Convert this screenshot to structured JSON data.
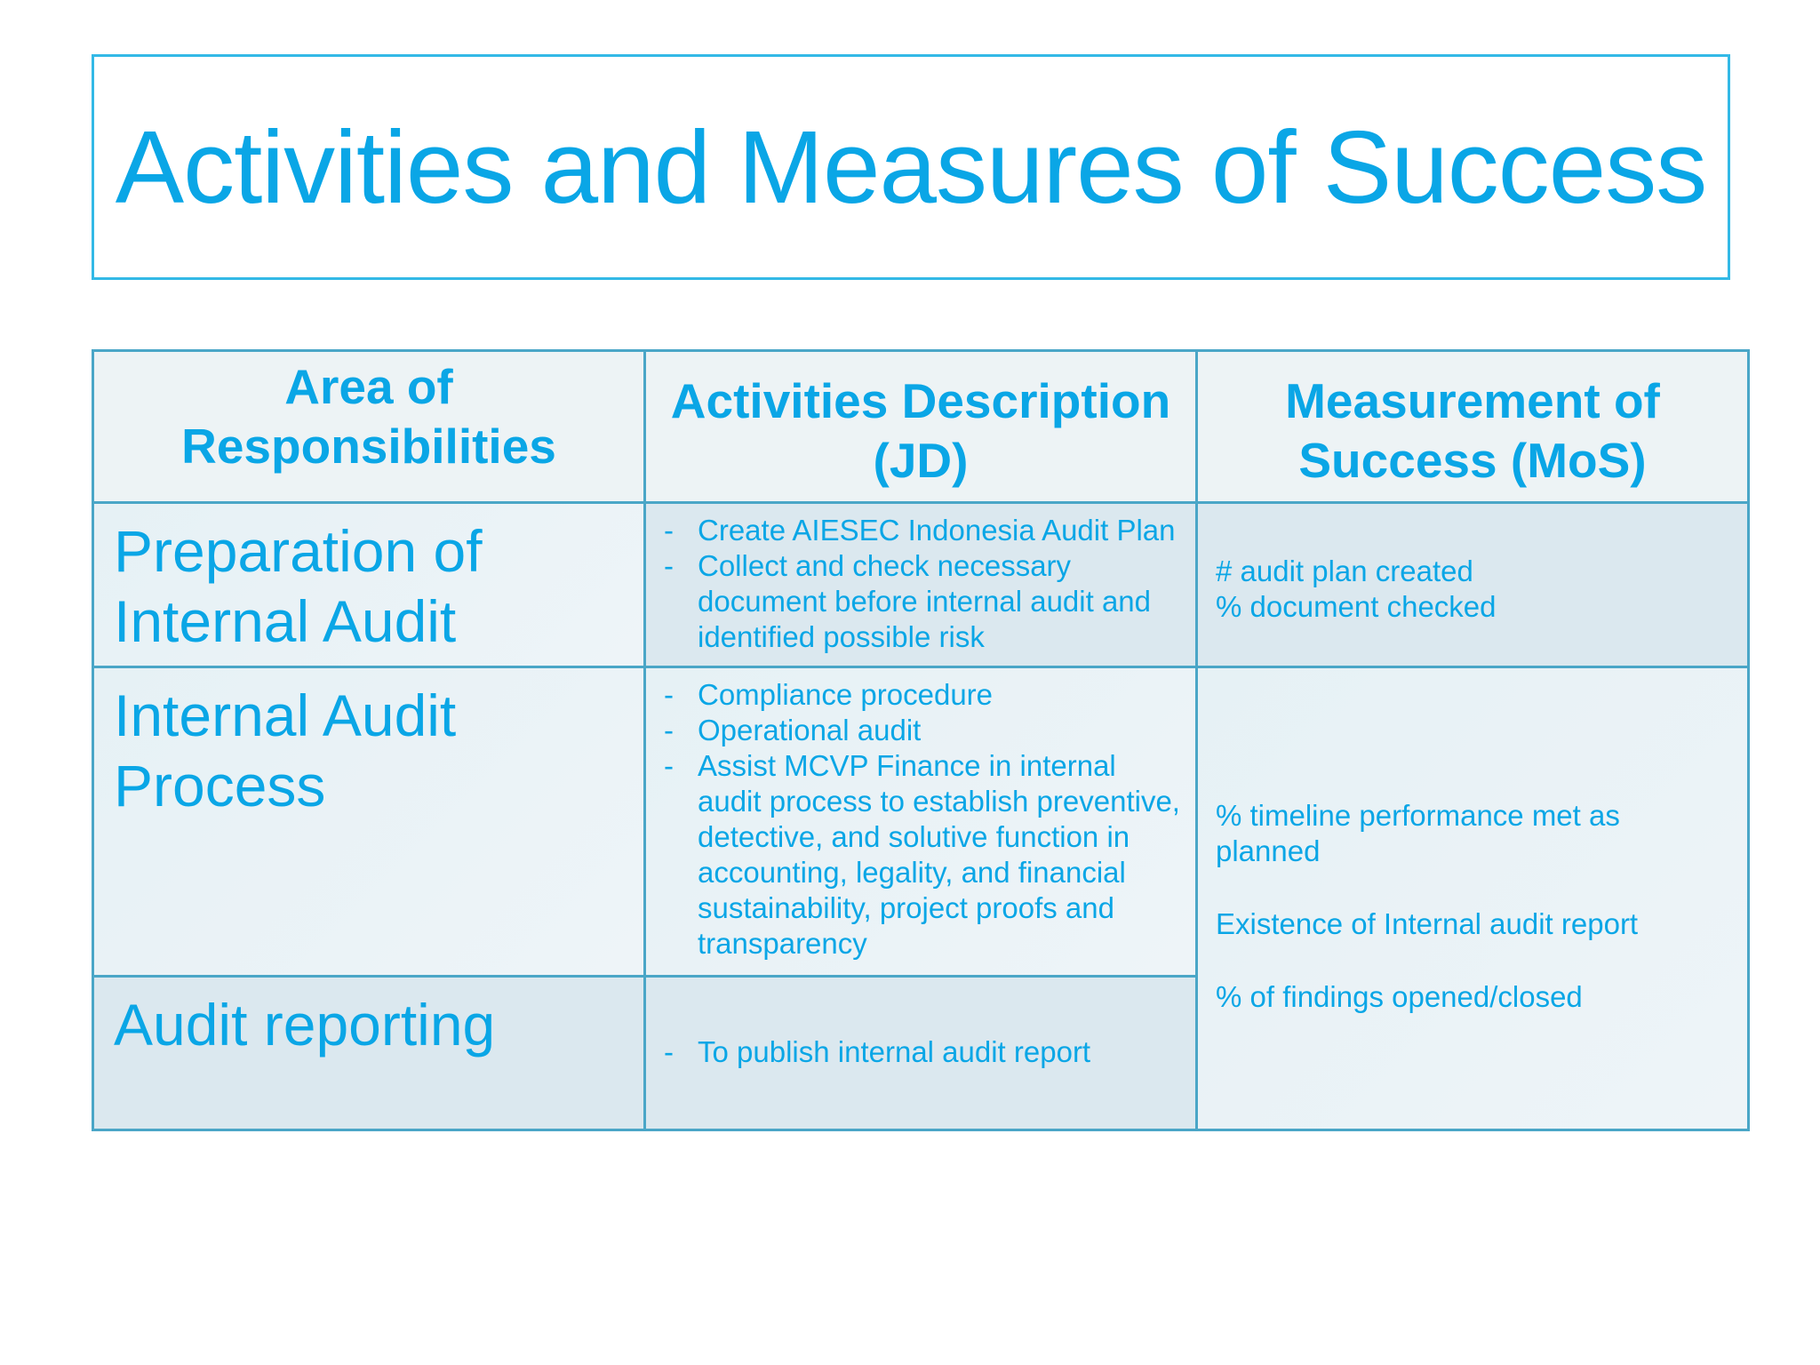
{
  "title": "Activities and Measures of Success",
  "table": {
    "headers": {
      "area": "Area of Responsibilities",
      "activities": "Activities Description (JD)",
      "mos": "Measurement of Success (MoS)"
    },
    "bullet": "-",
    "rows": [
      {
        "area": "Preparation of Internal Audit",
        "activities": [
          "Create AIESEC Indonesia Audit Plan",
          "Collect and check necessary document before internal audit and identified possible risk"
        ],
        "mos": [
          "# audit plan created",
          "% document checked"
        ]
      },
      {
        "area": "Internal Audit Process",
        "activities": [
          "Compliance procedure",
          "Operational audit",
          "Assist MCVP Finance in internal audit process to establish preventive, detective, and solutive function in accounting, legality, and financial sustainability, project proofs and transparency"
        ]
      },
      {
        "area": "Audit reporting",
        "activities": [
          "To publish internal audit report"
        ]
      }
    ],
    "shared_mos": [
      "% timeline performance met as planned",
      "Existence of Internal audit report",
      "% of findings opened/closed"
    ]
  }
}
